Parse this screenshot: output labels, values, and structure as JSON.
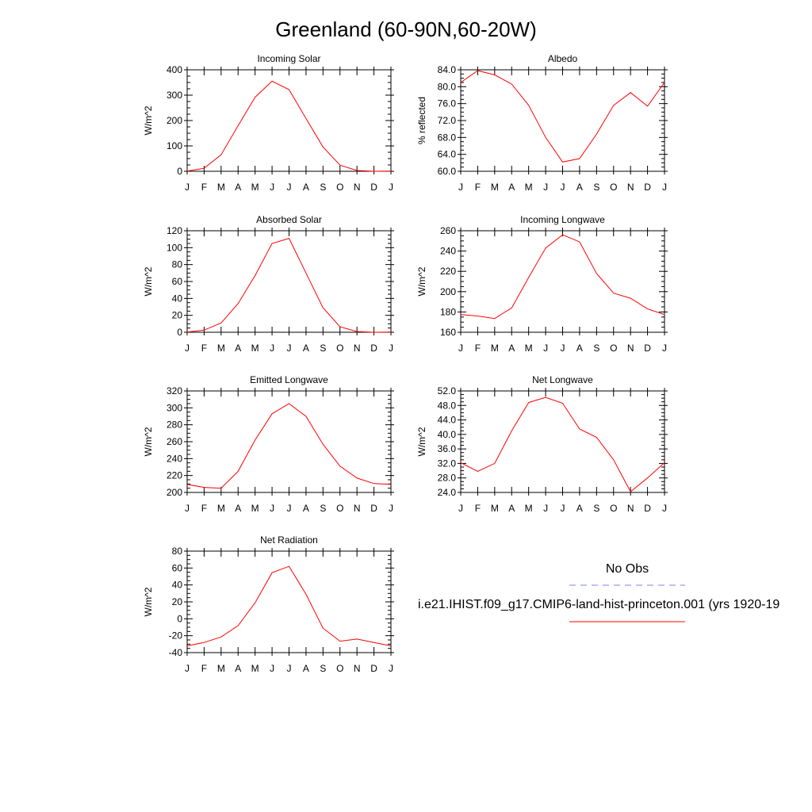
{
  "figure": {
    "title": "Greenland (60-90N,60-20W)",
    "month_labels": [
      "J",
      "F",
      "M",
      "A",
      "M",
      "J",
      "J",
      "A",
      "S",
      "O",
      "N",
      "D",
      "J"
    ]
  },
  "legend": {
    "no_obs": "No Obs",
    "case_label": "i.e21.IHIST.f09_g17.CMIP6-land-hist-princeton.001 (yrs 1920-19",
    "obs_color": "#7f7fff",
    "case_color": "#ff0000"
  },
  "chart_data": [
    {
      "type": "line",
      "title": "Incoming Solar",
      "ylabel": "W/m^2",
      "ylim": [
        0,
        400
      ],
      "yticks": [
        "0",
        "100",
        "200",
        "300",
        "400"
      ],
      "x": [
        "J",
        "F",
        "M",
        "A",
        "M",
        "J",
        "J",
        "A",
        "S",
        "O",
        "N",
        "D",
        "J"
      ],
      "values": [
        1,
        12,
        65,
        180,
        292,
        355,
        322,
        208,
        96,
        24,
        3,
        0,
        1
      ],
      "color": "#ff0000"
    },
    {
      "type": "line",
      "title": "Albedo",
      "ylabel": "% reflected",
      "ylim": [
        60,
        84
      ],
      "yticks": [
        "60.0",
        "64.0",
        "68.0",
        "72.0",
        "76.0",
        "80.0",
        "84.0"
      ],
      "x": [
        "J",
        "F",
        "M",
        "A",
        "M",
        "J",
        "J",
        "A",
        "S",
        "O",
        "N",
        "D",
        "J"
      ],
      "values": [
        81.0,
        83.8,
        82.8,
        80.6,
        75.6,
        68.0,
        62.2,
        63.0,
        68.8,
        75.6,
        78.6,
        75.4,
        81.0
      ],
      "color": "#ff0000"
    },
    {
      "type": "line",
      "title": "Absorbed Solar",
      "ylabel": "W/m^2",
      "ylim": [
        0,
        120
      ],
      "yticks": [
        "0",
        "20",
        "40",
        "60",
        "80",
        "100",
        "120"
      ],
      "x": [
        "J",
        "F",
        "M",
        "A",
        "M",
        "J",
        "J",
        "A",
        "S",
        "O",
        "N",
        "D",
        "J"
      ],
      "values": [
        0.3,
        2.5,
        11,
        34,
        67,
        105,
        111,
        70,
        29,
        6.5,
        0.8,
        0,
        0.3
      ],
      "color": "#ff0000"
    },
    {
      "type": "line",
      "title": "Incoming Longwave",
      "ylabel": "W/m^2",
      "ylim": [
        160,
        260
      ],
      "yticks": [
        "160",
        "180",
        "200",
        "220",
        "240",
        "260"
      ],
      "x": [
        "J",
        "F",
        "M",
        "A",
        "M",
        "J",
        "J",
        "A",
        "S",
        "O",
        "N",
        "D",
        "J"
      ],
      "values": [
        177.5,
        176,
        173.5,
        184,
        214,
        243,
        256,
        249,
        218,
        198.5,
        193.5,
        183,
        177.5
      ],
      "color": "#ff0000"
    },
    {
      "type": "line",
      "title": "Emitted Longwave",
      "ylabel": "W/m^2",
      "ylim": [
        200,
        320
      ],
      "yticks": [
        "200",
        "220",
        "240",
        "260",
        "280",
        "300",
        "320"
      ],
      "x": [
        "J",
        "F",
        "M",
        "A",
        "M",
        "J",
        "J",
        "A",
        "S",
        "O",
        "N",
        "D",
        "J"
      ],
      "values": [
        209.5,
        206,
        205,
        225,
        262,
        293,
        305,
        290,
        257,
        231,
        217,
        210.5,
        209.5
      ],
      "color": "#ff0000"
    },
    {
      "type": "line",
      "title": "Net Longwave",
      "ylabel": "W/m^2",
      "ylim": [
        24,
        52
      ],
      "yticks": [
        "24.0",
        "28.0",
        "32.0",
        "36.0",
        "40.0",
        "44.0",
        "48.0",
        "52.0"
      ],
      "x": [
        "J",
        "F",
        "M",
        "A",
        "M",
        "J",
        "J",
        "A",
        "S",
        "O",
        "N",
        "D",
        "J"
      ],
      "values": [
        32.2,
        29.8,
        32.0,
        41.0,
        48.8,
        50.2,
        48.6,
        41.5,
        39.2,
        33.0,
        24.2,
        28.0,
        32.2
      ],
      "color": "#ff0000"
    },
    {
      "type": "line",
      "title": "Net Radiation",
      "ylabel": "W/m^2",
      "ylim": [
        -40,
        80
      ],
      "yticks": [
        "-40",
        "-20",
        "0",
        "20",
        "40",
        "60",
        "80"
      ],
      "x": [
        "J",
        "F",
        "M",
        "A",
        "M",
        "J",
        "J",
        "A",
        "S",
        "O",
        "N",
        "D",
        "J"
      ],
      "values": [
        -32,
        -28,
        -21.5,
        -8,
        19,
        54.5,
        62,
        29,
        -11,
        -26.5,
        -24,
        -28,
        -32
      ],
      "color": "#ff0000"
    }
  ]
}
